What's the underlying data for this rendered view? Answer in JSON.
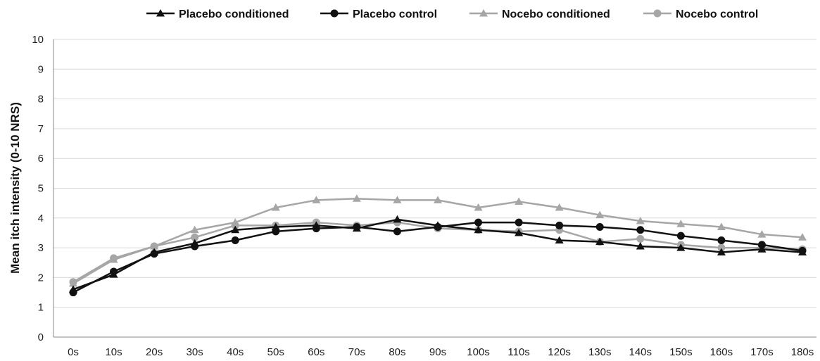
{
  "chart_data": {
    "type": "line",
    "categories": [
      "0s",
      "10s",
      "20s",
      "30s",
      "40s",
      "50s",
      "60s",
      "70s",
      "80s",
      "90s",
      "100s",
      "110s",
      "120s",
      "130s",
      "140s",
      "150s",
      "160s",
      "170s",
      "180s"
    ],
    "ylabel": "Mean itch intensity (0-10 NRS)",
    "xlabel": "",
    "ylim": [
      0,
      10
    ],
    "yticks": [
      0,
      1,
      2,
      3,
      4,
      5,
      6,
      7,
      8,
      9,
      10
    ],
    "grid": true,
    "legend_position": "top",
    "series": [
      {
        "name": "Placebo conditioned",
        "marker": "triangle",
        "color": "#111111",
        "values": [
          1.6,
          2.1,
          2.85,
          3.15,
          3.6,
          3.7,
          3.75,
          3.65,
          3.95,
          3.75,
          3.6,
          3.5,
          3.25,
          3.2,
          3.05,
          3.0,
          2.85,
          2.95,
          2.85
        ]
      },
      {
        "name": "Placebo control",
        "marker": "circle",
        "color": "#111111",
        "values": [
          1.5,
          2.2,
          2.8,
          3.05,
          3.25,
          3.55,
          3.65,
          3.7,
          3.55,
          3.7,
          3.85,
          3.85,
          3.75,
          3.7,
          3.6,
          3.4,
          3.25,
          3.1,
          2.9
        ]
      },
      {
        "name": "Nocebo conditioned",
        "marker": "triangle",
        "color": "#a6a6a6",
        "values": [
          1.8,
          2.6,
          3.05,
          3.6,
          3.85,
          4.35,
          4.6,
          4.65,
          4.6,
          4.6,
          4.35,
          4.55,
          4.35,
          4.1,
          3.9,
          3.8,
          3.7,
          3.45,
          3.35
        ]
      },
      {
        "name": "Nocebo control",
        "marker": "circle",
        "color": "#a6a6a6",
        "values": [
          1.85,
          2.65,
          3.05,
          3.35,
          3.75,
          3.75,
          3.85,
          3.75,
          3.85,
          3.65,
          3.6,
          3.55,
          3.6,
          3.2,
          3.3,
          3.1,
          3.0,
          3.0,
          2.95
        ]
      }
    ]
  }
}
